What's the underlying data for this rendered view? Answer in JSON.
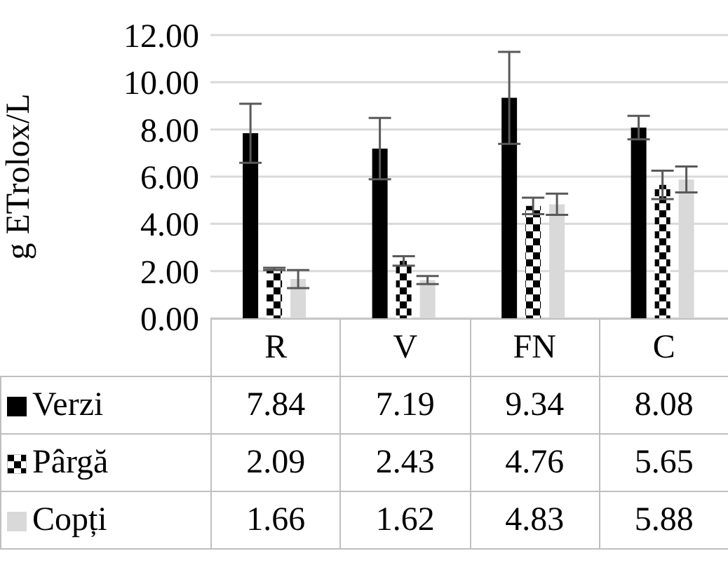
{
  "chart_data": {
    "type": "bar",
    "ylabel": "g ETrolox/L",
    "categories": [
      "R",
      "V",
      "FN",
      "C"
    ],
    "ylim": [
      0,
      12
    ],
    "yticks": [
      {
        "value": 0,
        "label": "0.00"
      },
      {
        "value": 2,
        "label": "2.00"
      },
      {
        "value": 4,
        "label": "4.00"
      },
      {
        "value": 6,
        "label": "6.00"
      },
      {
        "value": 8,
        "label": "8.00"
      },
      {
        "value": 10,
        "label": "10.00"
      },
      {
        "value": 12,
        "label": "12.00"
      }
    ],
    "grid": "y",
    "data_labels": true,
    "legend": "bottom left",
    "series": [
      {
        "name": "Verzi",
        "color": "#000000",
        "values": [
          7.84,
          7.19,
          9.34,
          8.08
        ],
        "errors": [
          1.25,
          1.3,
          1.95,
          0.5
        ]
      },
      {
        "name": "Pârgă",
        "color": "#000000",
        "values": [
          2.09,
          2.43,
          4.76,
          5.65
        ],
        "errors": [
          0.05,
          0.2,
          0.35,
          0.6
        ]
      },
      {
        "name": "Copți",
        "color": "#d9d9d9",
        "values": [
          1.66,
          1.62,
          4.83,
          5.88
        ],
        "errors": [
          0.38,
          0.17,
          0.45,
          0.55
        ]
      }
    ]
  }
}
